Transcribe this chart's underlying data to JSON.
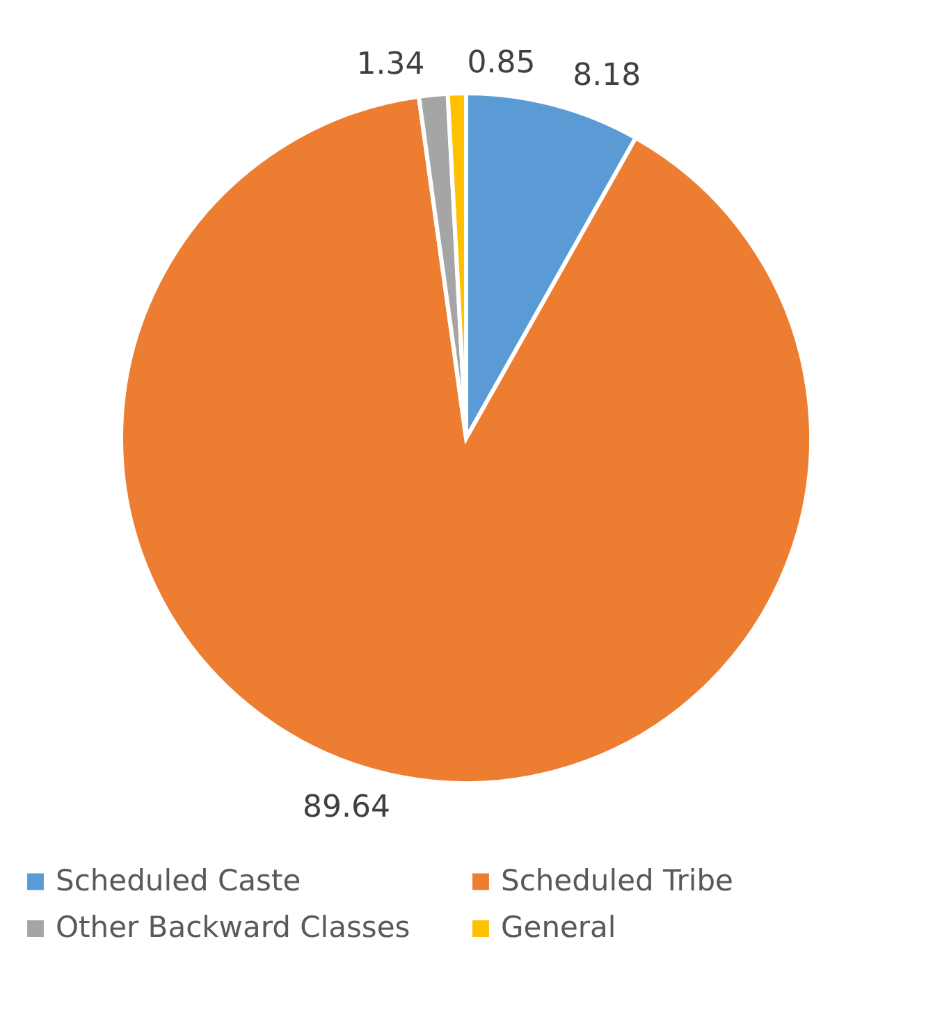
{
  "chart_data": {
    "type": "pie",
    "categories": [
      "Scheduled Caste",
      "Scheduled Tribe",
      "Other Backward Classes",
      "General"
    ],
    "values": [
      8.18,
      89.64,
      1.34,
      0.85
    ],
    "colors": [
      "#5b9bd5",
      "#ed7d31",
      "#a5a5a5",
      "#ffc000"
    ],
    "data_labels": true,
    "legend": "bottom"
  }
}
